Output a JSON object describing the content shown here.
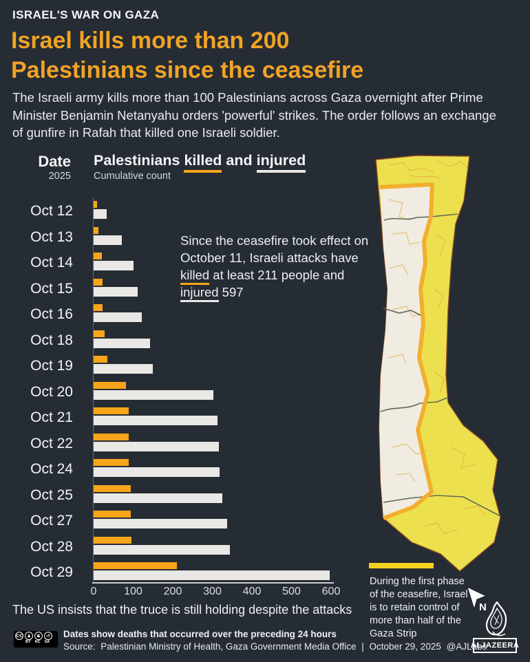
{
  "colors": {
    "background": "#262c34",
    "accent_orange": "#f0a325",
    "bar_killed": "#f9a51a",
    "bar_injured": "#e9e8e4",
    "map_yellow": "#ece04f",
    "map_cream": "#f0ece1",
    "map_line_yellow": "#f2ae2e",
    "map_outline": "#8a4a1e",
    "map_boundary_gray": "#5f6a55",
    "map_street": "#e2a43f",
    "legend_yellow": "#f2d321"
  },
  "header": {
    "kicker": "ISRAEL'S WAR ON GAZA",
    "title_line1": "Israel kills more than 200",
    "title_line2": "Palestinians since the ceasefire",
    "intro": "The Israeli army kills more than 100 Palestinians across Gaza overnight after Prime Minister Benjamin Netanyahu orders 'powerful' strikes. The order follows an exchange of gunfire in Rafah that killed one Israeli soldier."
  },
  "chart_header": {
    "date_label": "Date",
    "year": "2025",
    "title_parts": [
      "Palestinians ",
      {
        "t": "killed",
        "u": "orange"
      },
      " and ",
      {
        "t": "injured",
        "u": "white"
      }
    ],
    "subtitle": "Cumulative count"
  },
  "annotation": {
    "parts": [
      "Since the ceasefire took effect on October 11, Israeli attacks have ",
      {
        "t": "killed",
        "u": "orange"
      },
      " at least 211 people and ",
      {
        "t": "injured",
        "u": "white"
      },
      " 597"
    ]
  },
  "chart_data": {
    "type": "bar",
    "orientation": "horizontal",
    "title": "Palestinians killed and injured",
    "subtitle": "Cumulative count",
    "categories_year": "2025",
    "categories": [
      "Oct 12",
      "Oct 13",
      "Oct 14",
      "Oct 15",
      "Oct 16",
      "Oct 18",
      "Oct 19",
      "Oct 20",
      "Oct 21",
      "Oct 22",
      "Oct 24",
      "Oct 25",
      "Oct 27",
      "Oct 28",
      "Oct 29"
    ],
    "series": [
      {
        "name": "killed",
        "color": "#f9a51a",
        "values": [
          9,
          13,
          20,
          22,
          23,
          28,
          35,
          81,
          88,
          89,
          89,
          94,
          94,
          96,
          211
        ]
      },
      {
        "name": "injured",
        "color": "#e9e8e4",
        "values": [
          33,
          71,
          100,
          111,
          122,
          143,
          149,
          303,
          313,
          317,
          318,
          325,
          338,
          344,
          597
        ]
      }
    ],
    "xlim": [
      0,
      600
    ],
    "x_ticks": [
      0,
      100,
      200,
      300,
      400,
      500,
      600
    ],
    "grid": false,
    "legend_position": "underlined words in chart title",
    "note": "Dates show deaths that occurred over the preceding 24 hours"
  },
  "map": {
    "region": "Gaza Strip",
    "caption": "During the first phase of the ceasefire, Israel is to retain control of more than half of the Gaza Strip",
    "north_label": "N"
  },
  "notes": {
    "us_truce": "The US insists that the truce is still holding despite the attacks"
  },
  "footer": {
    "note_bold": "Dates show deaths that occurred over the preceding 24 hours",
    "source_label": "Source:",
    "source": "Palestinian Ministry of Health, Gaza Government Media Office",
    "separator": "|",
    "date": "October 29, 2025",
    "handle": "@AJLabs",
    "logo_text": "ALJAZEERA",
    "cc_icon": "CC",
    "cc_labels": [
      "BY",
      "NC",
      "SA"
    ]
  }
}
